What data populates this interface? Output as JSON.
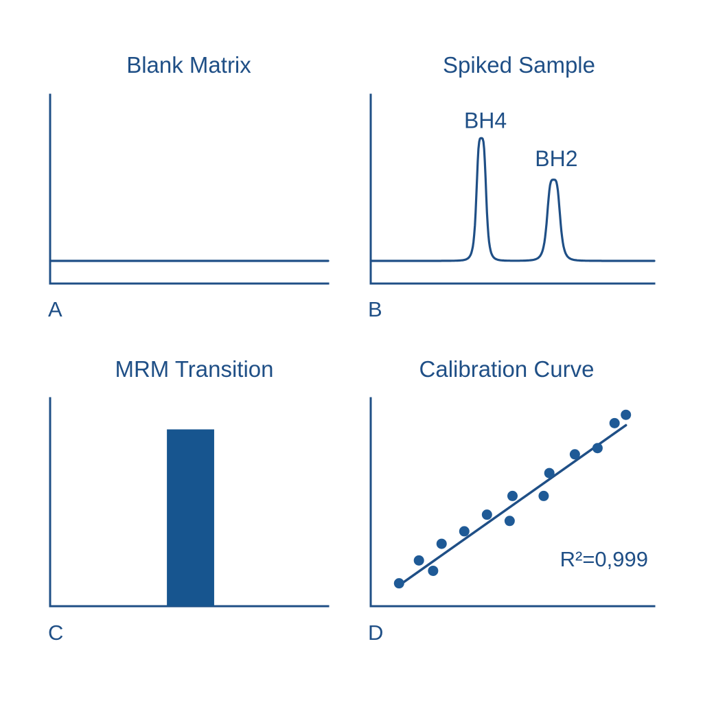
{
  "colors": {
    "primary": "#1f4f86",
    "bar": "#17558f",
    "points": "#1f5a96",
    "background": "#ffffff"
  },
  "panels": [
    {
      "letter": "A",
      "title": "Blank Matrix"
    },
    {
      "letter": "B",
      "title": "Spiked Sample",
      "peak_labels": [
        "BH4",
        "BH2"
      ]
    },
    {
      "letter": "C",
      "title": "MRM Transition"
    },
    {
      "letter": "D",
      "title": "Calibration Curve",
      "annotation": "R²=0,999"
    }
  ],
  "chart_data": [
    {
      "type": "line",
      "title": "Blank Matrix",
      "panel": "A",
      "xlabel": "",
      "ylabel": "",
      "xlim": [
        0,
        10
      ],
      "ylim": [
        0,
        10
      ],
      "grid": false,
      "series": [
        {
          "x": [
            0,
            10
          ],
          "y": [
            1.2,
            1.2
          ]
        }
      ]
    },
    {
      "type": "line",
      "title": "Spiked Sample",
      "panel": "B",
      "xlabel": "",
      "ylabel": "",
      "xlim": [
        0,
        10
      ],
      "ylim": [
        0,
        10
      ],
      "grid": false,
      "baseline": 1.2,
      "peaks": [
        {
          "name": "BH4",
          "center": 3.9,
          "height": 6.5,
          "width": 0.18
        },
        {
          "name": "BH2",
          "center": 6.45,
          "height": 4.3,
          "width": 0.24
        }
      ]
    },
    {
      "type": "bar",
      "title": "MRM Transition",
      "panel": "C",
      "xlabel": "",
      "ylabel": "",
      "xlim": [
        0,
        10
      ],
      "ylim": [
        0,
        10
      ],
      "grid": false,
      "bars": [
        {
          "x_start": 4.2,
          "x_end": 5.9,
          "value": 8.5
        }
      ]
    },
    {
      "type": "scatter",
      "title": "Calibration Curve",
      "panel": "D",
      "xlabel": "",
      "ylabel": "",
      "xlim": [
        0,
        10
      ],
      "ylim": [
        0,
        10
      ],
      "grid": false,
      "annotation": "R²=0,999",
      "points": {
        "x": [
          1.0,
          1.7,
          2.2,
          2.5,
          3.3,
          4.1,
          4.9,
          5.0,
          6.1,
          6.3,
          7.2,
          8.0,
          8.6,
          9.0
        ],
        "y": [
          1.1,
          2.2,
          1.7,
          3.0,
          3.6,
          4.4,
          4.1,
          5.3,
          5.3,
          6.4,
          7.3,
          7.6,
          8.8,
          9.2
        ]
      },
      "fit": {
        "x": [
          1.0,
          9.0
        ],
        "y": [
          1.0,
          8.7
        ]
      }
    }
  ]
}
